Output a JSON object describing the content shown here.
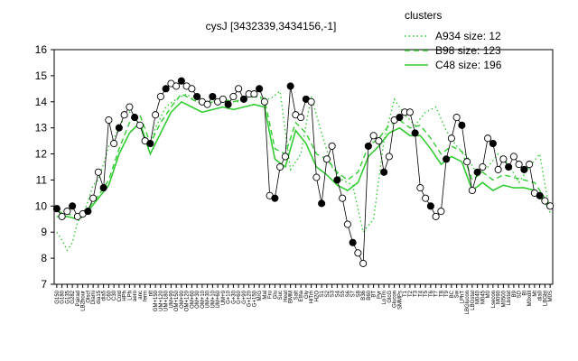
{
  "chart_data": {
    "type": "line",
    "title": "cysJ [3432339,3434156,-1]",
    "xlabel": "",
    "ylabel": "",
    "ylim": [
      7,
      16
    ],
    "yticks": [
      7,
      8,
      9,
      10,
      11,
      12,
      13,
      14,
      15,
      16
    ],
    "grid": false,
    "legend": {
      "title": "clusters",
      "position": "top-right",
      "entries": [
        "A934 size: 12",
        "B98 size: 123",
        "C48 size: 196"
      ]
    },
    "x_tick_labels": [
      "G150",
      "G180",
      "G135",
      "G282",
      "Pairad",
      "LB2hour",
      "Olscf",
      "Diami",
      "dia15",
      "dia5",
      "C60",
      "C30",
      "Cold",
      "HPh",
      "LPh",
      "aero",
      "anc",
      "ferm",
      "nit",
      "GM+150",
      "UM+120",
      "UM+180",
      "UM+90",
      "OM+150",
      "OM+90",
      "OM+120",
      "OM+60",
      "OM+30",
      "OM+10",
      "UM+30",
      "UM+10",
      "UM+60",
      "UM+0",
      "G+10",
      "G+30",
      "G+60",
      "G+90",
      "G+120",
      "G+150",
      "M/G",
      "Mal",
      "Fru",
      "Glu",
      "Suc",
      "Heat",
      "BMM",
      "Salt",
      "Etha",
      "Gly",
      "HiTm",
      "H2O",
      "S1",
      "S2",
      "S3",
      "S4",
      "S5",
      "S6",
      "S7",
      "S8",
      "B36",
      "B60",
      "BT",
      "Pyr",
      "LoTm",
      "GlcG",
      "Glucon",
      "SMMPs",
      "T1",
      "T2",
      "T3",
      "T4",
      "T5",
      "T6",
      "T7",
      "T8",
      "T9",
      "BC",
      "Sw",
      "LPhT",
      "LBGlucon",
      "LBGstat",
      "M040",
      "M045",
      "M0",
      "Lsecon",
      "M090",
      "M0500",
      "Lbstat",
      "B9",
      "SD",
      "BI",
      "M0xdll",
      "Mt",
      "dia0",
      "LBGbt",
      "M0S"
    ],
    "series": [
      {
        "name": "A934 size: 12",
        "style": "dotted",
        "color": "#33cc33",
        "x": [
          1,
          2,
          3,
          4,
          5,
          6,
          7,
          8,
          9,
          10,
          11,
          12,
          13,
          14,
          15,
          16,
          17,
          18,
          19,
          20,
          22,
          24,
          26,
          28,
          30,
          32,
          34,
          36,
          38,
          40,
          42,
          44,
          46,
          48,
          50,
          52,
          54,
          56,
          58,
          60,
          62,
          64,
          66,
          68,
          70,
          72,
          74,
          76,
          78,
          80,
          82,
          84,
          86,
          88,
          90,
          92,
          94,
          96
        ],
        "values": [
          9.0,
          8.7,
          8.3,
          8.6,
          9.4,
          9.6,
          10.2,
          10.8,
          11.0,
          11.6,
          12.3,
          12.6,
          13.0,
          13.4,
          13.6,
          13.4,
          13.1,
          12.6,
          12.3,
          13.0,
          13.8,
          14.1,
          14.3,
          14.0,
          13.9,
          14.1,
          14.0,
          14.0,
          14.2,
          14.2,
          14.1,
          14.4,
          11.4,
          12.0,
          14.2,
          12.8,
          11.5,
          11.0,
          10.8,
          9.0,
          9.5,
          12.5,
          14.1,
          13.5,
          13.1,
          13.6,
          13.8,
          12.9,
          12.3,
          11.9,
          11.2,
          11.5,
          12.0,
          11.6,
          10.9,
          11.5,
          12.0,
          9.7
        ]
      },
      {
        "name": "B98 size: 123",
        "style": "dashed",
        "color": "#33cc33",
        "x": [
          1,
          3,
          5,
          7,
          9,
          11,
          13,
          15,
          17,
          19,
          21,
          23,
          25,
          27,
          29,
          31,
          33,
          35,
          37,
          39,
          41,
          43,
          45,
          47,
          49,
          51,
          53,
          55,
          57,
          59,
          61,
          63,
          65,
          67,
          69,
          71,
          73,
          75,
          77,
          79,
          81,
          83,
          85,
          87,
          89,
          91,
          93,
          95,
          96
        ],
        "values": [
          9.8,
          9.7,
          9.6,
          9.9,
          10.4,
          11.0,
          12.2,
          13.2,
          13.5,
          12.4,
          13.2,
          13.8,
          14.3,
          14.1,
          13.9,
          14.0,
          14.1,
          14.0,
          14.1,
          14.2,
          14.1,
          12.2,
          12.0,
          13.2,
          12.8,
          12.0,
          11.8,
          11.3,
          11.0,
          11.3,
          12.3,
          12.6,
          13.1,
          13.3,
          13.0,
          13.1,
          12.6,
          12.0,
          12.3,
          12.1,
          11.0,
          11.3,
          11.0,
          11.2,
          11.1,
          11.0,
          10.9,
          10.3,
          10.1
        ]
      },
      {
        "name": "C48 size: 196",
        "style": "solid",
        "color": "#33cc33",
        "x": [
          1,
          3,
          5,
          7,
          9,
          11,
          13,
          15,
          17,
          19,
          21,
          23,
          25,
          27,
          29,
          31,
          33,
          35,
          37,
          39,
          41,
          43,
          45,
          47,
          49,
          51,
          53,
          55,
          57,
          59,
          61,
          63,
          65,
          67,
          69,
          71,
          73,
          75,
          77,
          79,
          81,
          83,
          85,
          87,
          89,
          91,
          93,
          95,
          96
        ],
        "values": [
          9.6,
          9.6,
          9.5,
          9.8,
          10.3,
          10.8,
          12.0,
          12.8,
          13.2,
          12.0,
          12.8,
          13.6,
          14.0,
          13.8,
          13.6,
          13.7,
          13.8,
          13.7,
          13.8,
          13.9,
          13.8,
          11.8,
          11.5,
          12.9,
          12.4,
          11.5,
          11.2,
          10.8,
          10.6,
          10.9,
          11.9,
          12.3,
          12.8,
          13.0,
          12.7,
          12.7,
          12.2,
          11.6,
          11.9,
          11.7,
          10.6,
          10.9,
          10.6,
          10.8,
          10.7,
          10.7,
          10.6,
          10.1,
          9.9
        ]
      }
    ],
    "points": {
      "x": [
        1,
        2,
        3,
        4,
        5,
        6,
        7,
        8,
        9,
        10,
        11,
        12,
        13,
        14,
        15,
        16,
        17,
        18,
        19,
        20,
        21,
        22,
        23,
        24,
        25,
        26,
        27,
        28,
        29,
        30,
        31,
        32,
        33,
        34,
        35,
        36,
        37,
        38,
        39,
        40,
        41,
        42,
        43,
        44,
        45,
        46,
        47,
        48,
        49,
        50,
        51,
        52,
        53,
        54,
        55,
        56,
        57,
        58,
        59,
        60,
        61,
        62,
        63,
        64,
        65,
        66,
        67,
        68,
        69,
        70,
        71,
        72,
        73,
        74,
        75,
        76,
        77,
        78,
        79,
        80,
        81,
        82,
        83,
        84,
        85,
        86,
        87,
        88,
        89,
        90,
        91,
        92,
        93,
        94,
        95,
        96
      ],
      "values": [
        9.9,
        9.6,
        9.8,
        10.0,
        9.6,
        9.7,
        9.8,
        10.3,
        11.3,
        10.7,
        13.3,
        12.4,
        13.0,
        13.5,
        13.8,
        13.4,
        13.1,
        12.5,
        12.4,
        13.5,
        14.2,
        14.5,
        14.7,
        14.6,
        14.8,
        14.6,
        14.5,
        14.2,
        14.0,
        13.9,
        14.2,
        14.0,
        14.1,
        13.9,
        14.2,
        14.5,
        14.1,
        14.3,
        14.3,
        14.5,
        14.0,
        10.4,
        10.3,
        11.5,
        11.9,
        14.6,
        13.5,
        13.4,
        14.1,
        14.0,
        11.1,
        10.1,
        11.8,
        12.3,
        11.0,
        10.3,
        9.3,
        8.6,
        8.2,
        7.8,
        12.3,
        12.7,
        12.5,
        11.3,
        11.9,
        13.3,
        13.4,
        13.6,
        13.6,
        12.8,
        10.7,
        10.3,
        10.0,
        9.6,
        9.8,
        11.8,
        12.6,
        13.4,
        13.1,
        11.7,
        10.6,
        11.3,
        11.5,
        12.6,
        12.4,
        11.4,
        11.8,
        11.5,
        11.9,
        11.6,
        11.4,
        11.6,
        10.5,
        10.4,
        10.2,
        10.0
      ]
    }
  }
}
